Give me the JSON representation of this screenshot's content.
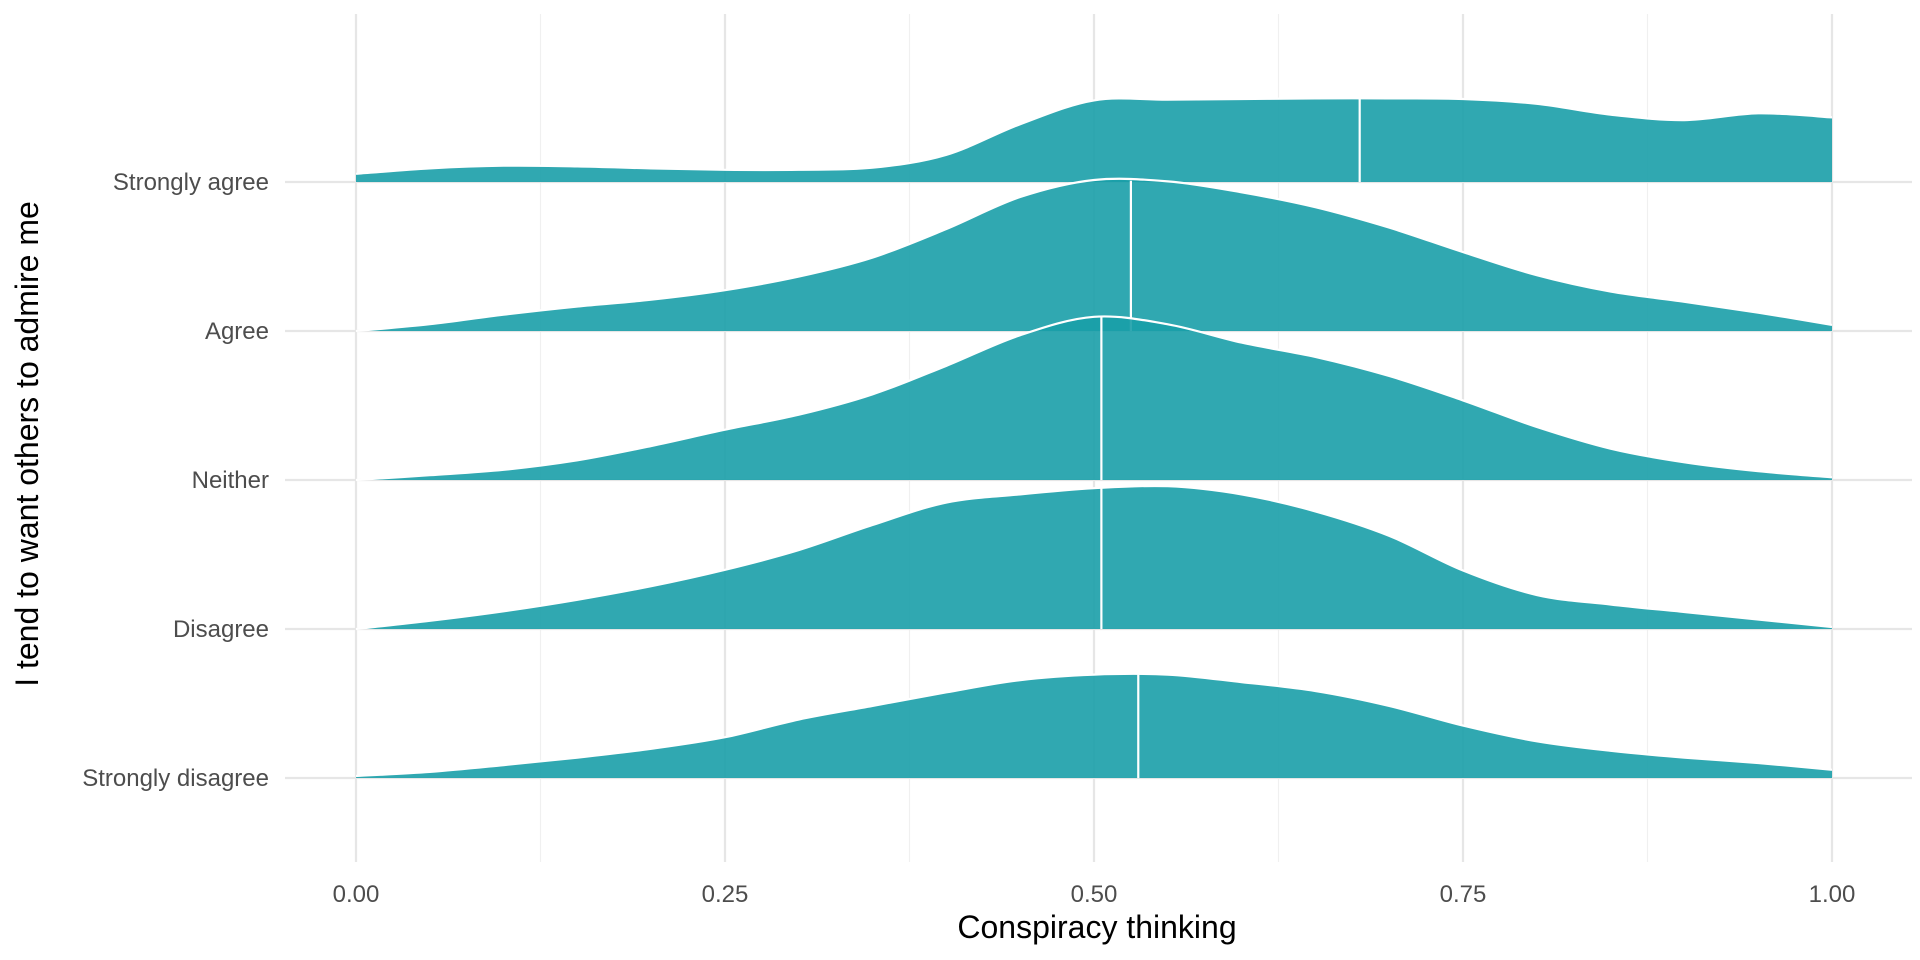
{
  "chart_data": {
    "type": "ridgeline",
    "xlabel": "Conspiracy thinking",
    "ylabel": "I tend to want others to admire me",
    "xlim": [
      0,
      1
    ],
    "x_ticks": [
      0,
      0.25,
      0.5,
      0.75,
      1
    ],
    "x_tick_labels": [
      "0.00",
      "0.25",
      "0.50",
      "0.75",
      "1.00"
    ],
    "categories": [
      "Strongly disagree",
      "Disagree",
      "Neither",
      "Agree",
      "Strongly agree"
    ],
    "series": [
      {
        "name": "Strongly disagree",
        "median": 0.53,
        "density": [
          [
            0,
            0.03
          ],
          [
            0.05,
            0.09
          ],
          [
            0.1,
            0.19
          ],
          [
            0.15,
            0.3
          ],
          [
            0.2,
            0.43
          ],
          [
            0.25,
            0.6
          ],
          [
            0.3,
            0.86
          ],
          [
            0.35,
            1.06
          ],
          [
            0.4,
            1.26
          ],
          [
            0.45,
            1.44
          ],
          [
            0.5,
            1.52
          ],
          [
            0.55,
            1.52
          ],
          [
            0.6,
            1.41
          ],
          [
            0.65,
            1.28
          ],
          [
            0.7,
            1.06
          ],
          [
            0.75,
            0.77
          ],
          [
            0.8,
            0.54
          ],
          [
            0.85,
            0.4
          ],
          [
            0.9,
            0.3
          ],
          [
            0.95,
            0.22
          ],
          [
            1,
            0.12
          ]
        ]
      },
      {
        "name": "Disagree",
        "median": 0.505,
        "density": [
          [
            0,
            0
          ],
          [
            0.05,
            0.12
          ],
          [
            0.1,
            0.26
          ],
          [
            0.15,
            0.43
          ],
          [
            0.2,
            0.63
          ],
          [
            0.25,
            0.87
          ],
          [
            0.3,
            1.16
          ],
          [
            0.35,
            1.53
          ],
          [
            0.4,
            1.86
          ],
          [
            0.45,
            1.98
          ],
          [
            0.5,
            2.07
          ],
          [
            0.55,
            2.1
          ],
          [
            0.6,
            1.98
          ],
          [
            0.65,
            1.73
          ],
          [
            0.7,
            1.37
          ],
          [
            0.75,
            0.86
          ],
          [
            0.8,
            0.5
          ],
          [
            0.85,
            0.36
          ],
          [
            0.9,
            0.25
          ],
          [
            0.95,
            0.14
          ],
          [
            1,
            0.03
          ]
        ]
      },
      {
        "name": "Neither",
        "median": 0.505,
        "density": [
          [
            0,
            0
          ],
          [
            0.05,
            0.07
          ],
          [
            0.1,
            0.15
          ],
          [
            0.15,
            0.29
          ],
          [
            0.2,
            0.5
          ],
          [
            0.25,
            0.74
          ],
          [
            0.3,
            0.96
          ],
          [
            0.35,
            1.26
          ],
          [
            0.4,
            1.68
          ],
          [
            0.45,
            2.13
          ],
          [
            0.5,
            2.4
          ],
          [
            0.55,
            2.29
          ],
          [
            0.6,
            2.02
          ],
          [
            0.65,
            1.81
          ],
          [
            0.7,
            1.53
          ],
          [
            0.75,
            1.17
          ],
          [
            0.8,
            0.78
          ],
          [
            0.85,
            0.46
          ],
          [
            0.9,
            0.26
          ],
          [
            0.95,
            0.13
          ],
          [
            1,
            0.04
          ]
        ]
      },
      {
        "name": "Agree",
        "median": 0.525,
        "density": [
          [
            0,
            0
          ],
          [
            0.05,
            0.1
          ],
          [
            0.1,
            0.24
          ],
          [
            0.15,
            0.36
          ],
          [
            0.2,
            0.46
          ],
          [
            0.25,
            0.6
          ],
          [
            0.3,
            0.8
          ],
          [
            0.35,
            1.08
          ],
          [
            0.4,
            1.5
          ],
          [
            0.45,
            1.97
          ],
          [
            0.5,
            2.22
          ],
          [
            0.55,
            2.2
          ],
          [
            0.6,
            2.04
          ],
          [
            0.65,
            1.82
          ],
          [
            0.7,
            1.52
          ],
          [
            0.75,
            1.16
          ],
          [
            0.8,
            0.82
          ],
          [
            0.85,
            0.58
          ],
          [
            0.9,
            0.43
          ],
          [
            0.95,
            0.27
          ],
          [
            1,
            0.09
          ]
        ]
      },
      {
        "name": "Strongly agree",
        "median": 0.68,
        "density": [
          [
            0,
            0.12
          ],
          [
            0.05,
            0.2
          ],
          [
            0.1,
            0.24
          ],
          [
            0.15,
            0.23
          ],
          [
            0.2,
            0.2
          ],
          [
            0.25,
            0.18
          ],
          [
            0.3,
            0.18
          ],
          [
            0.35,
            0.21
          ],
          [
            0.4,
            0.4
          ],
          [
            0.45,
            0.85
          ],
          [
            0.5,
            1.2
          ],
          [
            0.55,
            1.21
          ],
          [
            0.6,
            1.22
          ],
          [
            0.65,
            1.23
          ],
          [
            0.7,
            1.23
          ],
          [
            0.75,
            1.22
          ],
          [
            0.8,
            1.15
          ],
          [
            0.85,
            0.99
          ],
          [
            0.9,
            0.91
          ],
          [
            0.95,
            1.01
          ],
          [
            1,
            0.95
          ]
        ]
      }
    ],
    "fill_color": "#1a9fa9",
    "fill_opacity": 0.9,
    "line_color": "#ffffff",
    "grid": true,
    "legend": "none"
  }
}
